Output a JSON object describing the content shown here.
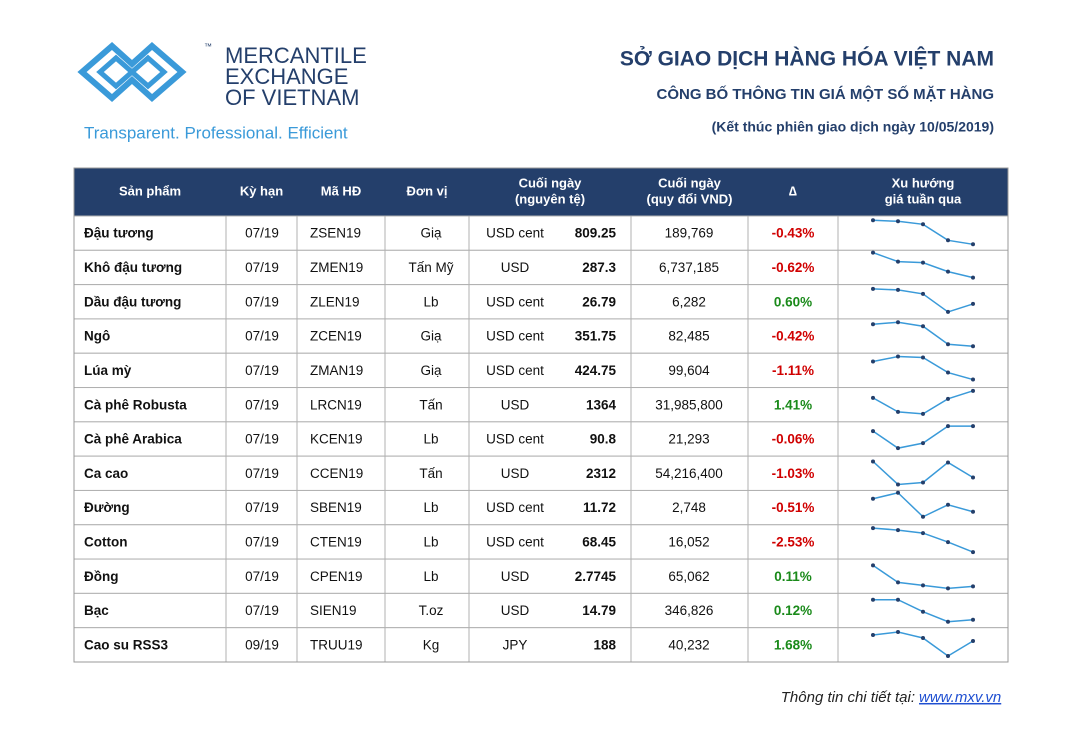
{
  "header": {
    "logo_lines": [
      "MERCANTILE",
      "EXCHANGE",
      "OF VIETNAM"
    ],
    "trademark": "™",
    "tagline": "Transparent. Professional. Efficient",
    "title": "SỞ GIAO DỊCH HÀNG HÓA VIỆT NAM",
    "subtitle": "CÔNG BỐ THÔNG TIN GIÁ MỘT SỐ MẶT HÀNG",
    "date_note": "(Kết thúc phiên giao dịch ngày 10/05/2019)"
  },
  "table": {
    "columns": [
      [
        "Sản phẩm"
      ],
      [
        "Kỳ hạn"
      ],
      [
        "Mã HĐ"
      ],
      [
        "Đơn vị"
      ],
      [
        "Cuối ngày",
        "(nguyên tệ)"
      ],
      [
        "Cuối ngày",
        "(quy đổi VND)"
      ],
      [
        "∆"
      ],
      [
        "Xu hướng",
        "giá tuần qua"
      ]
    ],
    "rows": [
      {
        "product": "Đậu tương",
        "term": "07/19",
        "code": "ZSEN19",
        "unit": "Giạ",
        "currency": "USD cent",
        "price": "809.25",
        "vnd": "189,769",
        "change": "-0.43%",
        "trend": [
          30,
          29,
          26,
          10,
          6
        ]
      },
      {
        "product": "Khô đậu tương",
        "term": "07/19",
        "code": "ZMEN19",
        "unit": "Tấn Mỹ",
        "currency": "USD",
        "price": "287.3",
        "vnd": "6,737,185",
        "change": "-0.62%",
        "trend": [
          32,
          23,
          22,
          13,
          7
        ]
      },
      {
        "product": "Dầu đậu tương",
        "term": "07/19",
        "code": "ZLEN19",
        "unit": "Lb",
        "currency": "USD cent",
        "price": "26.79",
        "vnd": "6,282",
        "change": "0.60%",
        "trend": [
          30,
          29,
          25,
          7,
          15
        ]
      },
      {
        "product": "Ngô",
        "term": "07/19",
        "code": "ZCEN19",
        "unit": "Giạ",
        "currency": "USD cent",
        "price": "351.75",
        "vnd": "82,485",
        "change": "-0.42%",
        "trend": [
          29,
          31,
          27,
          9,
          7
        ]
      },
      {
        "product": "Lúa mỳ",
        "term": "07/19",
        "code": "ZMAN19",
        "unit": "Giạ",
        "currency": "USD cent",
        "price": "424.75",
        "vnd": "99,604",
        "change": "-1.11%",
        "trend": [
          26,
          31,
          30,
          15,
          8
        ]
      },
      {
        "product": "Cà phê Robusta",
        "term": "07/19",
        "code": "LRCN19",
        "unit": "Tấn",
        "currency": "USD",
        "price": "1364",
        "vnd": "31,985,800",
        "change": "1.41%",
        "trend": [
          24,
          10,
          8,
          23,
          31
        ]
      },
      {
        "product": "Cà phê Arabica",
        "term": "07/19",
        "code": "KCEN19",
        "unit": "Lb",
        "currency": "USD cent",
        "price": "90.8",
        "vnd": "21,293",
        "change": "-0.06%",
        "trend": [
          25,
          8,
          13,
          30,
          30
        ]
      },
      {
        "product": "Ca cao",
        "term": "07/19",
        "code": "CCEN19",
        "unit": "Tấn",
        "currency": "USD",
        "price": "2312",
        "vnd": "54,216,400",
        "change": "-1.03%",
        "trend": [
          29,
          6,
          8,
          28,
          13
        ]
      },
      {
        "product": "Đường",
        "term": "07/19",
        "code": "SBEN19",
        "unit": "Lb",
        "currency": "USD cent",
        "price": "11.72",
        "vnd": "2,748",
        "change": "-0.51%",
        "trend": [
          26,
          32,
          8,
          20,
          13
        ]
      },
      {
        "product": "Cotton",
        "term": "07/19",
        "code": "CTEN19",
        "unit": "Lb",
        "currency": "USD cent",
        "price": "68.45",
        "vnd": "16,052",
        "change": "-2.53%",
        "trend": [
          31,
          29,
          26,
          17,
          7
        ]
      },
      {
        "product": "Đồng",
        "term": "07/19",
        "code": "CPEN19",
        "unit": "Lb",
        "currency": "USD",
        "price": "2.7745",
        "vnd": "65,062",
        "change": "0.11%",
        "trend": [
          28,
          11,
          8,
          5,
          7
        ]
      },
      {
        "product": "Bạc",
        "term": "07/19",
        "code": "SIEN19",
        "unit": "T.oz",
        "currency": "USD",
        "price": "14.79",
        "vnd": "346,826",
        "change": "0.12%",
        "trend": [
          28,
          28,
          16,
          6,
          8
        ]
      },
      {
        "product": "Cao su RSS3",
        "term": "09/19",
        "code": "TRUU19",
        "unit": "Kg",
        "currency": "JPY",
        "price": "188",
        "vnd": "40,232",
        "change": "1.68%",
        "trend": [
          27,
          30,
          24,
          6,
          21
        ]
      }
    ]
  },
  "footer": {
    "label": "Thông tin chi tiết tại:",
    "link": "www.mxv.vn"
  }
}
